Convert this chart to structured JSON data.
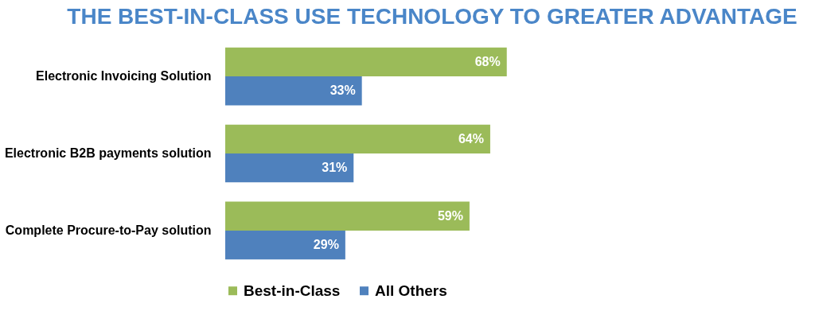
{
  "chart_data": {
    "type": "bar",
    "orientation": "horizontal",
    "title": "THE BEST-IN-CLASS USE TECHNOLOGY TO GREATER ADVANTAGE",
    "categories": [
      "Electronic Invoicing Solution",
      "Electronic B2B payments solution",
      "Complete Procure-to-Pay solution"
    ],
    "series": [
      {
        "name": "Best-in-Class",
        "color": "#9bbb59",
        "values": [
          68,
          64,
          59
        ],
        "value_labels": [
          "68%",
          "64%",
          "59%"
        ]
      },
      {
        "name": "All Others",
        "color": "#4f81bd",
        "values": [
          33,
          31,
          29
        ],
        "value_labels": [
          "33%",
          "31%",
          "29%"
        ]
      }
    ],
    "legend": "bottom"
  }
}
